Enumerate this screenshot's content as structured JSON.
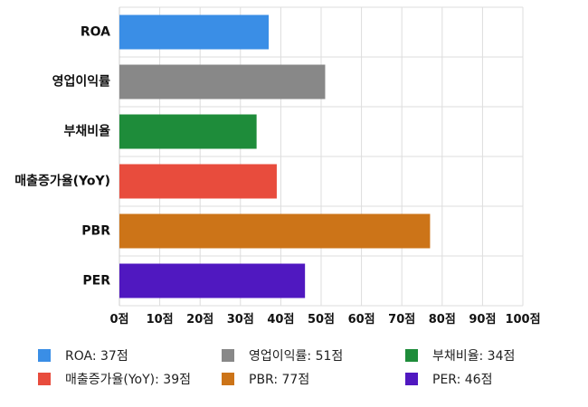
{
  "chart_data": {
    "type": "bar",
    "orientation": "horizontal",
    "categories": [
      "ROA",
      "영업이익률",
      "부채비율",
      "매출증가율(YoY)",
      "PBR",
      "PER"
    ],
    "values": [
      37,
      51,
      34,
      39,
      77,
      46
    ],
    "colors": [
      "#3a8ee6",
      "#888888",
      "#1e8c3a",
      "#e84c3d",
      "#cc7418",
      "#5018c0"
    ],
    "xlim": [
      0,
      100
    ],
    "x_ticks": [
      "0점",
      "10점",
      "20점",
      "30점",
      "40점",
      "50점",
      "60점",
      "70점",
      "80점",
      "90점",
      "100점"
    ],
    "grid": true,
    "legend_position": "bottom",
    "legend": [
      "ROA: 37점",
      "영업이익률: 51점",
      "부채비율: 34점",
      "매출증가율(YoY): 39점",
      "PBR: 77점",
      "PER: 46점"
    ]
  }
}
